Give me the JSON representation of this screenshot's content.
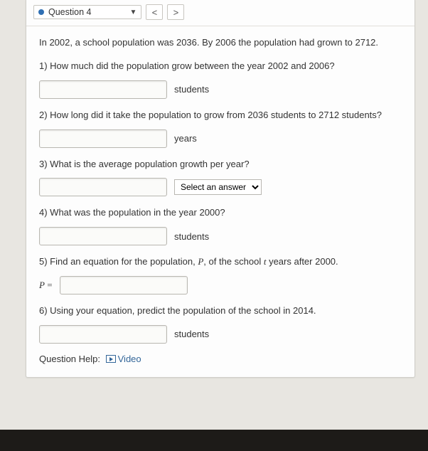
{
  "colors": {
    "page_bg": "#b8b4ad",
    "panel_bg": "#e8e6e1",
    "card_bg": "#fdfdfd",
    "border": "#d0cec9",
    "accent_dot": "#2f6fb3",
    "link": "#336699",
    "bottom": "#1d1b18"
  },
  "header": {
    "question_label": "Question 4",
    "prev_glyph": "<",
    "next_glyph": ">"
  },
  "intro": "In 2002, a school population was 2036. By 2006 the population had grown to 2712.",
  "q1": {
    "prompt": "1) How much did the population grow between the year 2002 and 2006?",
    "unit": "students",
    "value": ""
  },
  "q2": {
    "prompt": "2) How long did it take the population to grow from 2036 students to 2712 students?",
    "unit": "years",
    "value": ""
  },
  "q3": {
    "prompt": "3) What is the average population growth per year?",
    "value": "",
    "select_placeholder": "Select an answer"
  },
  "q4": {
    "prompt": "4) What was the population in the year 2000?",
    "unit": "students",
    "value": ""
  },
  "q5": {
    "prompt_pre": "5) Find an equation for the population, ",
    "var1": "P",
    "prompt_mid": ", of the school ",
    "var2": "t",
    "prompt_post": " years after 2000.",
    "lhs_var": "P",
    "lhs_eq": " = ",
    "value": ""
  },
  "q6": {
    "prompt": "6) Using your equation, predict the population of the school in 2014.",
    "unit": "students",
    "value": ""
  },
  "help": {
    "label": "Question Help:",
    "video": "Video"
  }
}
